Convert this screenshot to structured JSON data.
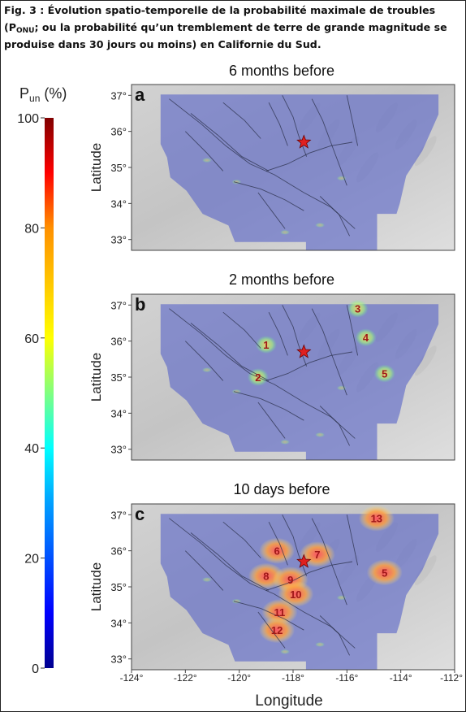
{
  "caption": {
    "before": "Fig. 3 : Évolution spatio-temporelle de la probabilité maximale de troubles (P",
    "sub": "ONU",
    "after": "; ou la probabilité qu’un tremblement de terre de grande magnitude se produise dans 30 jours ou moins) en Californie du Sud."
  },
  "colorbar": {
    "label_main": "P",
    "label_sub": "un",
    "label_unit": " (%)",
    "ticks": [
      0,
      20,
      40,
      60,
      80,
      100
    ],
    "range": [
      0,
      100
    ],
    "colors": {
      "low": "#00008f",
      "c1": "#0000ff",
      "c2": "#00a0ff",
      "c3": "#00ffff",
      "c4": "#80ff80",
      "c5": "#ffff00",
      "c6": "#ff9000",
      "c7": "#ff0000",
      "high": "#800000"
    }
  },
  "chart_data": [
    {
      "type": "heatmap",
      "panel": "a",
      "title": "6 months before",
      "xlabel": "Longitude",
      "ylabel": "Latitude",
      "xlim": [
        -124,
        -112
      ],
      "ylim": [
        32.7,
        37.3
      ],
      "yticks": [
        "33°",
        "34°",
        "35°",
        "36°",
        "37°"
      ],
      "epicenter": {
        "lon": -117.6,
        "lat": 35.7
      },
      "anomalies": []
    },
    {
      "type": "heatmap",
      "panel": "b",
      "title": "2 months before",
      "xlabel": "Longitude",
      "ylabel": "Latitude",
      "xlim": [
        -124,
        -112
      ],
      "ylim": [
        32.7,
        37.3
      ],
      "yticks": [
        "33°",
        "34°",
        "35°",
        "36°",
        "37°"
      ],
      "epicenter": {
        "lon": -117.6,
        "lat": 35.7
      },
      "anomalies": [
        {
          "label": "1",
          "lon": -119.0,
          "lat": 35.9
        },
        {
          "label": "2",
          "lon": -119.3,
          "lat": 35.0
        },
        {
          "label": "3",
          "lon": -115.6,
          "lat": 36.9
        },
        {
          "label": "4",
          "lon": -115.3,
          "lat": 36.1
        },
        {
          "label": "5",
          "lon": -114.6,
          "lat": 35.1
        }
      ]
    },
    {
      "type": "heatmap",
      "panel": "c",
      "title": "10 days before",
      "xlabel": "Longitude",
      "ylabel": "Latitude",
      "xlim": [
        -124,
        -112
      ],
      "ylim": [
        32.7,
        37.3
      ],
      "yticks": [
        "33°",
        "34°",
        "35°",
        "36°",
        "37°"
      ],
      "xticks": [
        "-124°",
        "-122°",
        "-120°",
        "-118°",
        "-116°",
        "-114°",
        "-112°"
      ],
      "epicenter": {
        "lon": -117.6,
        "lat": 35.7
      },
      "anomalies": [
        {
          "label": "13",
          "lon": -114.9,
          "lat": 36.9
        },
        {
          "label": "6",
          "lon": -118.6,
          "lat": 36.0
        },
        {
          "label": "7",
          "lon": -117.1,
          "lat": 35.9
        },
        {
          "label": "5",
          "lon": -114.6,
          "lat": 35.4
        },
        {
          "label": "8",
          "lon": -119.0,
          "lat": 35.3
        },
        {
          "label": "9",
          "lon": -118.1,
          "lat": 35.2
        },
        {
          "label": "10",
          "lon": -117.9,
          "lat": 34.8
        },
        {
          "label": "11",
          "lon": -118.5,
          "lat": 34.3
        },
        {
          "label": "12",
          "lon": -118.6,
          "lat": 33.8
        }
      ]
    }
  ]
}
